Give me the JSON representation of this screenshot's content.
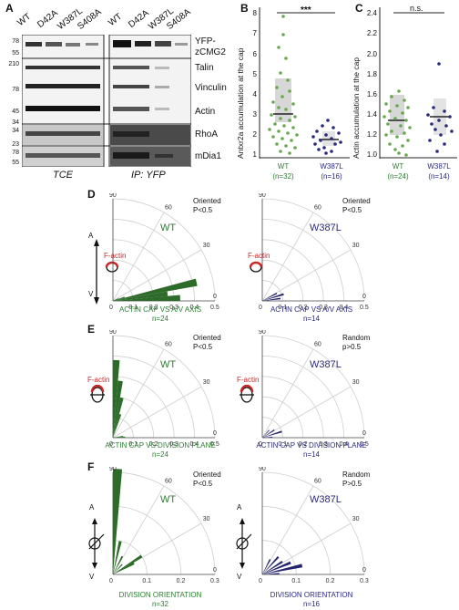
{
  "panels": {
    "a": "A",
    "b": "B",
    "c": "C",
    "d": "D",
    "e": "E",
    "f": "F"
  },
  "blot": {
    "lanes": [
      "WT",
      "D42A",
      "W387L",
      "S408A",
      "WT",
      "D42A",
      "W387L",
      "S408A"
    ],
    "mw_markers": [
      "78",
      "55",
      "210",
      "78",
      "45",
      "34",
      "34",
      "23",
      "78",
      "55"
    ],
    "proteins": [
      "YFP-",
      "zCMG2",
      "Talin",
      "Vinculin",
      "Actin",
      "RhoA",
      "mDia1"
    ],
    "footer_left": "TCE",
    "footer_right": "IP: YFP"
  },
  "panel_b": {
    "ylabel": "Antxr2a accumulation at the cap",
    "yticks": [
      "8",
      "7",
      "6",
      "5",
      "4",
      "3",
      "2",
      "1"
    ],
    "significance": "***",
    "groups": [
      {
        "name": "WT",
        "n": "(n=32)",
        "color": "#6aa84f"
      },
      {
        "name": "W387L",
        "n": "(n=16)",
        "color": "#2a2a7a"
      }
    ]
  },
  "panel_c": {
    "ylabel": "Actin accumulation at the cap",
    "yticks": [
      "2.4",
      "2.2",
      "2.0",
      "1.8",
      "1.6",
      "1.4",
      "1.2",
      "1.0"
    ],
    "significance": "n.s.",
    "groups": [
      {
        "name": "WT",
        "n": "(n=24)",
        "color": "#6aa84f"
      },
      {
        "name": "W387L",
        "n": "(n=14)",
        "color": "#2a2a7a"
      }
    ]
  },
  "polar": {
    "angle_ticks": [
      "90",
      "60",
      "30",
      "0"
    ],
    "radial_ticks_05": [
      "0",
      "0.1",
      "0.2",
      "0.3",
      "0.4",
      "0.5"
    ],
    "radial_ticks_03": [
      "0",
      "0.1",
      "0.2",
      "0.3"
    ],
    "axis_a": "A",
    "axis_v": "V",
    "factin": "F-actin",
    "d_left": {
      "cond": "WT",
      "stat1": "Oriented",
      "stat2": "P<0.5",
      "title": "ACTIN CAP VS A/V AXIS",
      "n": "n=24"
    },
    "d_right": {
      "cond": "W387L",
      "stat1": "Oriented",
      "stat2": "P<0.5",
      "title": "ACTIN CAP VS A/V AXIS",
      "n": "n=14"
    },
    "e_left": {
      "cond": "WT",
      "stat1": "Oriented",
      "stat2": "P<0.5",
      "title": "ACTIN CAP VS DIVISION PLANE",
      "n": "n=24"
    },
    "e_right": {
      "cond": "W387L",
      "stat1": "Random",
      "stat2": "p>0.5",
      "title": "ACTIN CAP VS DIVISION PLANE",
      "n": "n=14"
    },
    "f_left": {
      "cond": "WT",
      "stat1": "Oriented",
      "stat2": "P<0.5",
      "title": "DIVISION ORIENTATION",
      "n": "n=32"
    },
    "f_right": {
      "cond": "W387L",
      "stat1": "Random",
      "stat2": "P>0.5",
      "title": "DIVISION ORIENTATION",
      "n": "n=16"
    }
  },
  "colors": {
    "wt": "#2e6b2b",
    "mut": "#23236e",
    "factin": "#c62828"
  }
}
